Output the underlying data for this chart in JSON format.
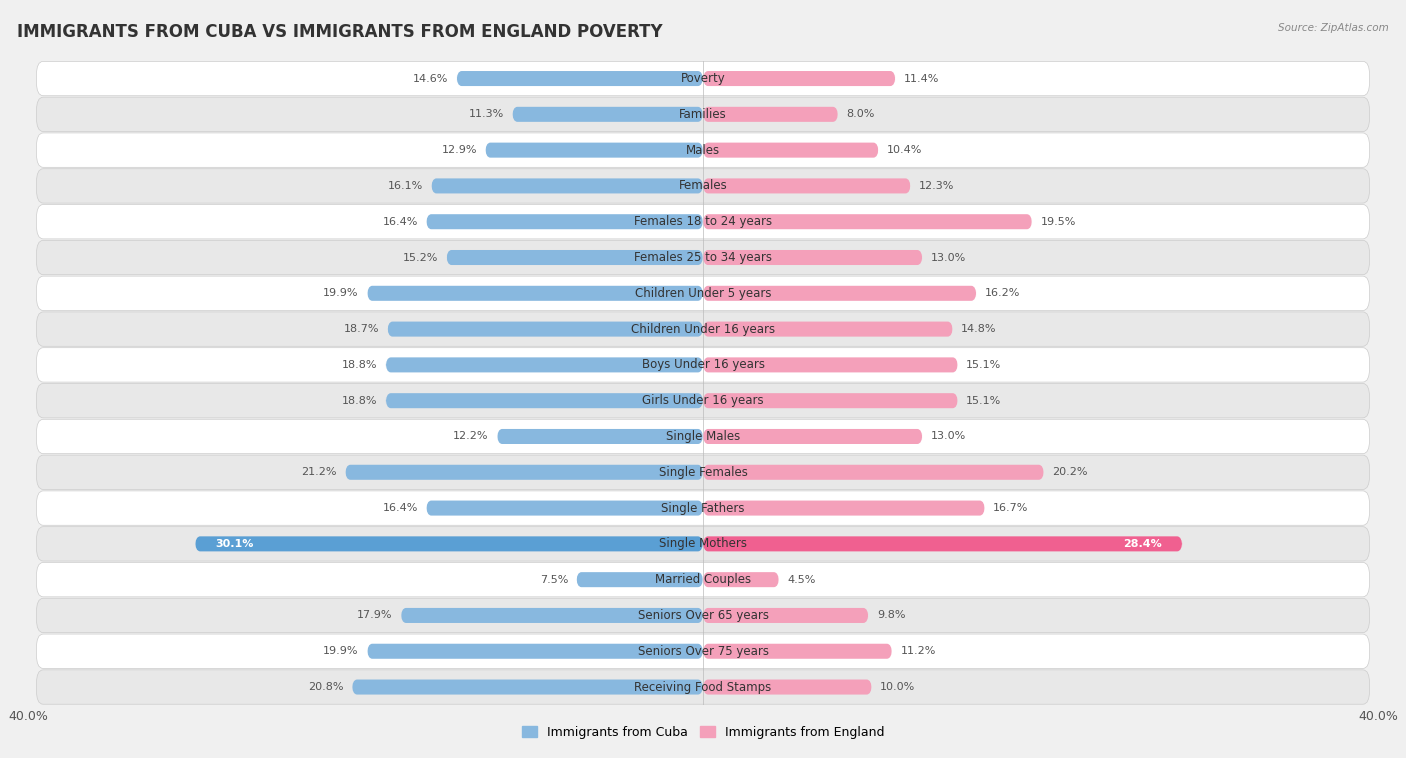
{
  "title": "IMMIGRANTS FROM CUBA VS IMMIGRANTS FROM ENGLAND POVERTY",
  "source": "Source: ZipAtlas.com",
  "categories": [
    "Poverty",
    "Families",
    "Males",
    "Females",
    "Females 18 to 24 years",
    "Females 25 to 34 years",
    "Children Under 5 years",
    "Children Under 16 years",
    "Boys Under 16 years",
    "Girls Under 16 years",
    "Single Males",
    "Single Females",
    "Single Fathers",
    "Single Mothers",
    "Married Couples",
    "Seniors Over 65 years",
    "Seniors Over 75 years",
    "Receiving Food Stamps"
  ],
  "cuba_values": [
    14.6,
    11.3,
    12.9,
    16.1,
    16.4,
    15.2,
    19.9,
    18.7,
    18.8,
    18.8,
    12.2,
    21.2,
    16.4,
    30.1,
    7.5,
    17.9,
    19.9,
    20.8
  ],
  "england_values": [
    11.4,
    8.0,
    10.4,
    12.3,
    19.5,
    13.0,
    16.2,
    14.8,
    15.1,
    15.1,
    13.0,
    20.2,
    16.7,
    28.4,
    4.5,
    9.8,
    11.2,
    10.0
  ],
  "cuba_color": "#88b8df",
  "england_color": "#f4a0ba",
  "single_mothers_cuba_color": "#5a9fd4",
  "single_mothers_england_color": "#f06090",
  "background_color": "#f0f0f0",
  "row_color_even": "#ffffff",
  "row_color_odd": "#e8e8e8",
  "axis_limit": 40.0,
  "legend_cuba": "Immigrants from Cuba",
  "legend_england": "Immigrants from England",
  "title_fontsize": 12,
  "label_fontsize": 8.5,
  "value_fontsize": 8.0
}
